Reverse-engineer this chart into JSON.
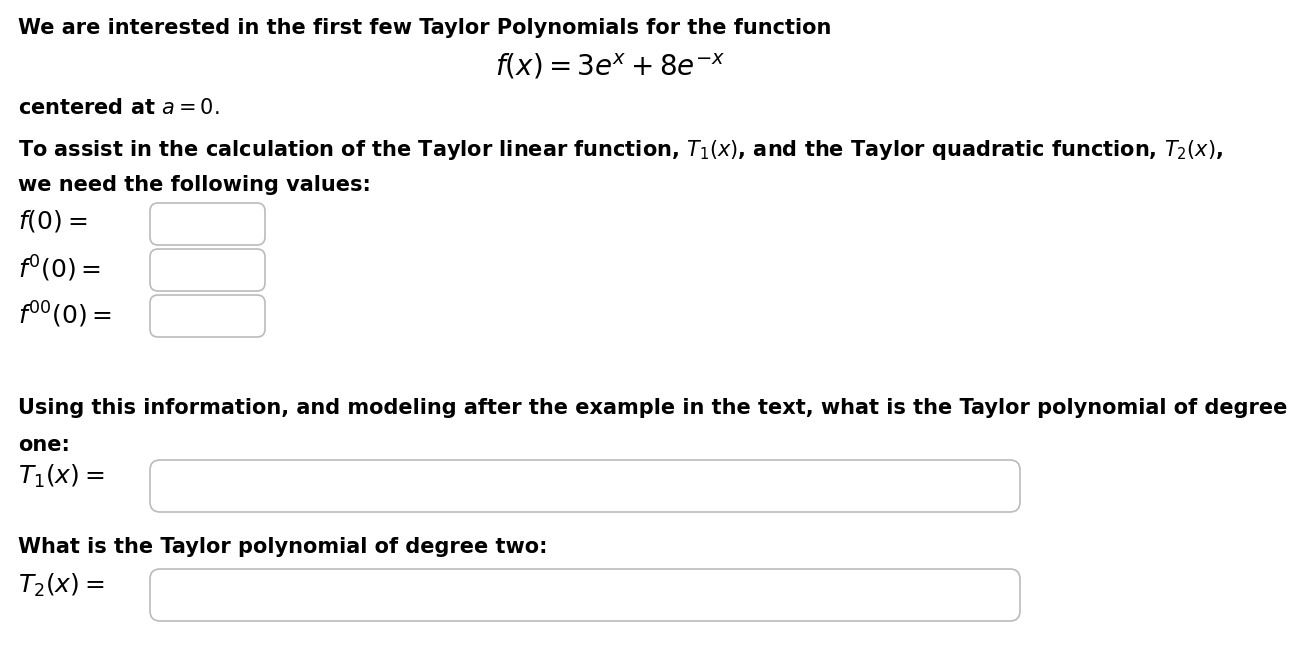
{
  "background_color": "#ffffff",
  "line1": "We are interested in the first few Taylor Polynomials for the function",
  "line2_math": "$f(x) = 3e^{x} + 8e^{-x}$",
  "line3": "centered at $a = 0.$",
  "line4": "To assist in the calculation of the Taylor linear function, $T_1(x)$, and the Taylor quadratic function, $T_2(x)$,",
  "line5": "we need the following values:",
  "label_f0": "$f(0) =$",
  "label_fp0": "$f'(0) =$",
  "label_fpp0": "$f''(0) =$",
  "line_using": "Using this information, and modeling after the example in the text, what is the Taylor polynomial of degree",
  "line_one": "one:",
  "label_T1": "$T_1(x) =$",
  "line_what": "What is the Taylor polynomial of degree two:",
  "label_T2": "$T_2(x) =$",
  "font_size_text": 15,
  "font_size_math": 17,
  "box_color": "#bbbbbb"
}
